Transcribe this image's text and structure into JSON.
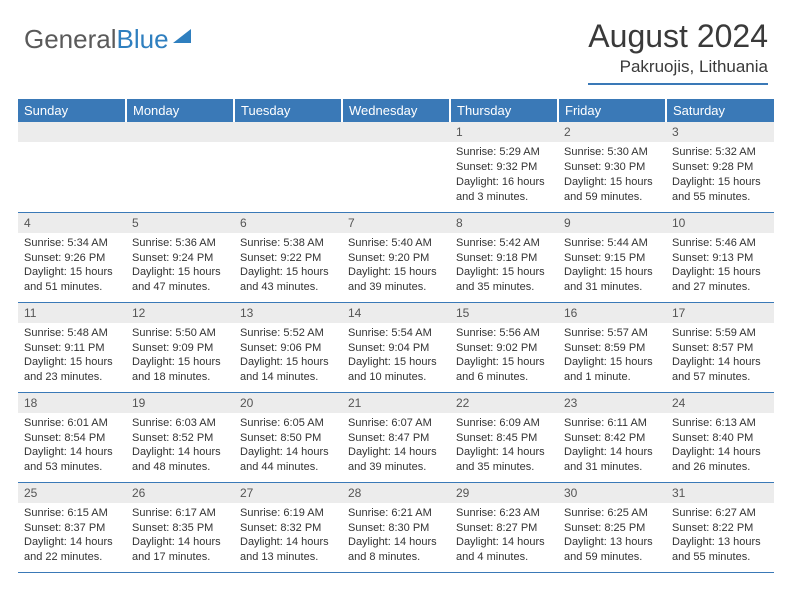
{
  "logo": {
    "textGray": "General",
    "textBlue": "Blue"
  },
  "header": {
    "title": "August 2024",
    "location": "Pakruojis, Lithuania"
  },
  "colors": {
    "accent": "#3a79b7",
    "headerRow": "#ececec",
    "text": "#333333"
  },
  "dayNames": [
    "Sunday",
    "Monday",
    "Tuesday",
    "Wednesday",
    "Thursday",
    "Friday",
    "Saturday"
  ],
  "weeks": [
    [
      null,
      null,
      null,
      null,
      {
        "n": "1",
        "sr": "5:29 AM",
        "ss": "9:32 PM",
        "dl": "16 hours and 3 minutes."
      },
      {
        "n": "2",
        "sr": "5:30 AM",
        "ss": "9:30 PM",
        "dl": "15 hours and 59 minutes."
      },
      {
        "n": "3",
        "sr": "5:32 AM",
        "ss": "9:28 PM",
        "dl": "15 hours and 55 minutes."
      }
    ],
    [
      {
        "n": "4",
        "sr": "5:34 AM",
        "ss": "9:26 PM",
        "dl": "15 hours and 51 minutes."
      },
      {
        "n": "5",
        "sr": "5:36 AM",
        "ss": "9:24 PM",
        "dl": "15 hours and 47 minutes."
      },
      {
        "n": "6",
        "sr": "5:38 AM",
        "ss": "9:22 PM",
        "dl": "15 hours and 43 minutes."
      },
      {
        "n": "7",
        "sr": "5:40 AM",
        "ss": "9:20 PM",
        "dl": "15 hours and 39 minutes."
      },
      {
        "n": "8",
        "sr": "5:42 AM",
        "ss": "9:18 PM",
        "dl": "15 hours and 35 minutes."
      },
      {
        "n": "9",
        "sr": "5:44 AM",
        "ss": "9:15 PM",
        "dl": "15 hours and 31 minutes."
      },
      {
        "n": "10",
        "sr": "5:46 AM",
        "ss": "9:13 PM",
        "dl": "15 hours and 27 minutes."
      }
    ],
    [
      {
        "n": "11",
        "sr": "5:48 AM",
        "ss": "9:11 PM",
        "dl": "15 hours and 23 minutes."
      },
      {
        "n": "12",
        "sr": "5:50 AM",
        "ss": "9:09 PM",
        "dl": "15 hours and 18 minutes."
      },
      {
        "n": "13",
        "sr": "5:52 AM",
        "ss": "9:06 PM",
        "dl": "15 hours and 14 minutes."
      },
      {
        "n": "14",
        "sr": "5:54 AM",
        "ss": "9:04 PM",
        "dl": "15 hours and 10 minutes."
      },
      {
        "n": "15",
        "sr": "5:56 AM",
        "ss": "9:02 PM",
        "dl": "15 hours and 6 minutes."
      },
      {
        "n": "16",
        "sr": "5:57 AM",
        "ss": "8:59 PM",
        "dl": "15 hours and 1 minute."
      },
      {
        "n": "17",
        "sr": "5:59 AM",
        "ss": "8:57 PM",
        "dl": "14 hours and 57 minutes."
      }
    ],
    [
      {
        "n": "18",
        "sr": "6:01 AM",
        "ss": "8:54 PM",
        "dl": "14 hours and 53 minutes."
      },
      {
        "n": "19",
        "sr": "6:03 AM",
        "ss": "8:52 PM",
        "dl": "14 hours and 48 minutes."
      },
      {
        "n": "20",
        "sr": "6:05 AM",
        "ss": "8:50 PM",
        "dl": "14 hours and 44 minutes."
      },
      {
        "n": "21",
        "sr": "6:07 AM",
        "ss": "8:47 PM",
        "dl": "14 hours and 39 minutes."
      },
      {
        "n": "22",
        "sr": "6:09 AM",
        "ss": "8:45 PM",
        "dl": "14 hours and 35 minutes."
      },
      {
        "n": "23",
        "sr": "6:11 AM",
        "ss": "8:42 PM",
        "dl": "14 hours and 31 minutes."
      },
      {
        "n": "24",
        "sr": "6:13 AM",
        "ss": "8:40 PM",
        "dl": "14 hours and 26 minutes."
      }
    ],
    [
      {
        "n": "25",
        "sr": "6:15 AM",
        "ss": "8:37 PM",
        "dl": "14 hours and 22 minutes."
      },
      {
        "n": "26",
        "sr": "6:17 AM",
        "ss": "8:35 PM",
        "dl": "14 hours and 17 minutes."
      },
      {
        "n": "27",
        "sr": "6:19 AM",
        "ss": "8:32 PM",
        "dl": "14 hours and 13 minutes."
      },
      {
        "n": "28",
        "sr": "6:21 AM",
        "ss": "8:30 PM",
        "dl": "14 hours and 8 minutes."
      },
      {
        "n": "29",
        "sr": "6:23 AM",
        "ss": "8:27 PM",
        "dl": "14 hours and 4 minutes."
      },
      {
        "n": "30",
        "sr": "6:25 AM",
        "ss": "8:25 PM",
        "dl": "13 hours and 59 minutes."
      },
      {
        "n": "31",
        "sr": "6:27 AM",
        "ss": "8:22 PM",
        "dl": "13 hours and 55 minutes."
      }
    ]
  ],
  "labels": {
    "sunrise": "Sunrise: ",
    "sunset": "Sunset: ",
    "daylight": "Daylight: "
  }
}
